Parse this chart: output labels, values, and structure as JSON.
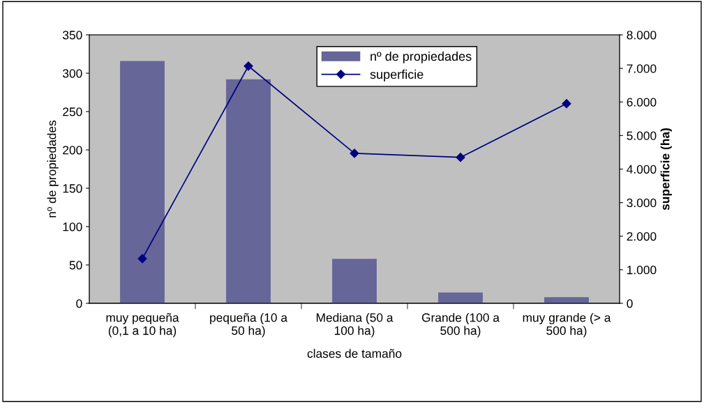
{
  "chart_data": {
    "type": "bar",
    "categories": [
      "muy pequeña\n(0,1 a 10 ha)",
      "pequeña (10 a\n50 ha)",
      "Mediana (50 a\n100 ha)",
      "Grande (100 a\n500 ha)",
      "muy grande (> a\n500 ha)"
    ],
    "xlabel": "clases de tamaño",
    "ylabel": "nº de propiedades",
    "y2label": "superficie (ha)",
    "series": [
      {
        "name": "nº de propiedades",
        "color": "#666699",
        "values": [
          316,
          292,
          58,
          14,
          8
        ]
      },
      {
        "name": "superficie",
        "type": "line",
        "axis": "y2",
        "color": "#000080",
        "marker": "diamond",
        "line_style": "solid",
        "values": [
          1330,
          7070,
          4470,
          4350,
          5950
        ]
      }
    ],
    "ylim": [
      0,
      350
    ],
    "yticks": [
      0,
      50,
      100,
      150,
      200,
      250,
      300,
      350
    ],
    "y2lim": [
      0,
      8000
    ],
    "y2ticks": [
      0,
      {
        "value": 1000,
        "label": "1.000"
      },
      {
        "value": 2000,
        "label": "2.000"
      },
      {
        "value": 3000,
        "label": "3.000"
      },
      {
        "value": 4000,
        "label": "4.000"
      },
      {
        "value": 5000,
        "label": "5.000"
      },
      {
        "value": 6000,
        "label": "6.000"
      },
      {
        "value": 7000,
        "label": "7.000"
      },
      {
        "value": 8000,
        "label": "8.000"
      }
    ],
    "grid": false,
    "legend": "top"
  }
}
